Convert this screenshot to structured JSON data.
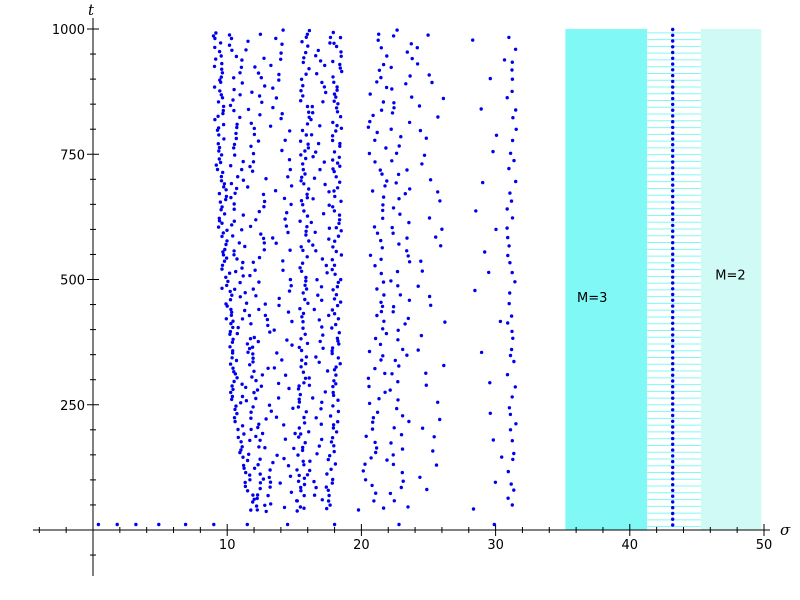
{
  "chart_data": {
    "type": "scatter",
    "title": "",
    "xlabel": "σ",
    "ylabel": "t",
    "xlim": [
      -4.5,
      50
    ],
    "ylim": [
      -90,
      1005
    ],
    "x_ticks": [
      10,
      20,
      30,
      40,
      50
    ],
    "y_ticks": [
      250,
      500,
      750,
      1000
    ],
    "x_tick_labels": [
      "10",
      "20",
      "30",
      "40",
      "50"
    ],
    "y_tick_labels": [
      "250",
      "500",
      "750",
      "1000"
    ],
    "grid": false,
    "colors": {
      "points": "#0000ee",
      "region_m3": "#80f8f6",
      "region_m2": "#cffaf5",
      "stripe_band": "#ffffff",
      "stripe_line": "#80f8f6"
    },
    "regions": [
      {
        "label": "M=3",
        "x0": 35.2,
        "x1": 41.3,
        "y0": 0,
        "y1": 1000,
        "style": "solid"
      },
      {
        "label": "",
        "x0": 41.3,
        "x1": 45.3,
        "y0": 0,
        "y1": 1000,
        "style": "striped"
      },
      {
        "label": "M=2",
        "x0": 45.3,
        "x1": 49.8,
        "y0": 0,
        "y1": 1000,
        "style": "solid-light"
      }
    ],
    "region_label_positions": [
      {
        "label": "M=3",
        "x": 37.2,
        "y": 455
      },
      {
        "label": "M=2",
        "x": 47.5,
        "y": 500
      }
    ],
    "stripe_spacing_t": 13.5,
    "column_x": 43.2,
    "column_spacing_t": 11.5,
    "bottom_row": {
      "t": 11,
      "x": [
        0.4,
        1.8,
        3.2,
        4.9,
        6.9,
        9.0,
        11.5,
        14.5,
        18.0,
        22.8,
        29.9
      ]
    },
    "curves": [
      {
        "a": 9.0,
        "b": 12.2,
        "c": 0.25,
        "spacing": 7.2,
        "jitter": 0.35
      },
      {
        "a": 10.4,
        "b": 13.0,
        "c": 0.28,
        "spacing": 10.5,
        "jitter": 0.55
      },
      {
        "a": 12.0,
        "b": 13.8,
        "c": 0.32,
        "spacing": 12.5,
        "jitter": 0.7
      },
      {
        "a": 14.0,
        "b": 14.6,
        "c": 0.38,
        "spacing": 15.5,
        "jitter": 0.8
      },
      {
        "a": 15.8,
        "b": 15.3,
        "c": 0.45,
        "spacing": 9.5,
        "jitter": 0.35
      },
      {
        "a": 17.0,
        "b": 16.2,
        "c": 0.55,
        "spacing": 13.5,
        "jitter": 0.75
      },
      {
        "a": 18.2,
        "b": 17.2,
        "c": 0.7,
        "spacing": 8.5,
        "jitter": 0.35
      },
      {
        "a": 21.2,
        "b": 19.6,
        "c": 0.95,
        "spacing": 13.0,
        "jitter": 0.7
      },
      {
        "a": 23.0,
        "b": 21.4,
        "c": 1.15,
        "spacing": 14.0,
        "jitter": 0.8
      },
      {
        "a": 25.2,
        "b": 23.3,
        "c": 1.4,
        "spacing": 25.0,
        "jitter": 1.1
      },
      {
        "a": 29.5,
        "b": 27.8,
        "c": 1.6,
        "spacing": 45.0,
        "jitter": 1.3
      },
      {
        "a": 31.2,
        "b": 31.2,
        "c": 1.0,
        "spacing": 19.0,
        "jitter": 0.35
      }
    ]
  }
}
